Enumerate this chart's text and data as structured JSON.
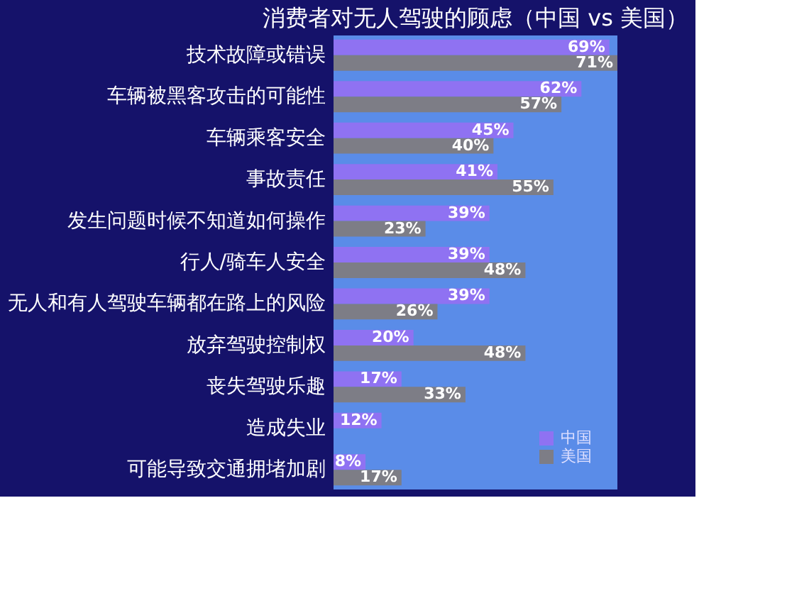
{
  "chart_data": {
    "type": "bar",
    "orientation": "horizontal",
    "title": "消费者对无人驾驶的顾虑（中国 vs 美国）",
    "categories": [
      "技术故障或错误",
      "车辆被黑客攻击的可能性",
      "车辆乘客安全",
      "事故责任",
      "发生问题时候不知道如何操作",
      "行人/骑车人安全",
      "无人和有人驾驶车辆都在路上的风险",
      "放弃驾驶控制权",
      "丧失驾驶乐趣",
      "造成失业",
      "可能导致交通拥堵加剧"
    ],
    "series": [
      {
        "name": "中国",
        "color": "#8f72f2",
        "values": [
          69,
          62,
          45,
          41,
          39,
          39,
          39,
          20,
          17,
          12,
          8
        ],
        "value_labels": [
          "69%",
          "62%",
          "45%",
          "41%",
          "39%",
          "39%",
          "39%",
          "20%",
          "17%",
          "12%",
          "8%"
        ]
      },
      {
        "name": "美国",
        "color": "#7d7d86",
        "values": [
          71,
          57,
          40,
          55,
          23,
          48,
          26,
          48,
          33,
          null,
          17
        ],
        "value_labels": [
          "71%",
          "57%",
          "40%",
          "55%",
          "23%",
          "48%",
          "26%",
          "48%",
          "33%",
          null,
          "17%"
        ]
      }
    ],
    "legend": "bottom right"
  }
}
